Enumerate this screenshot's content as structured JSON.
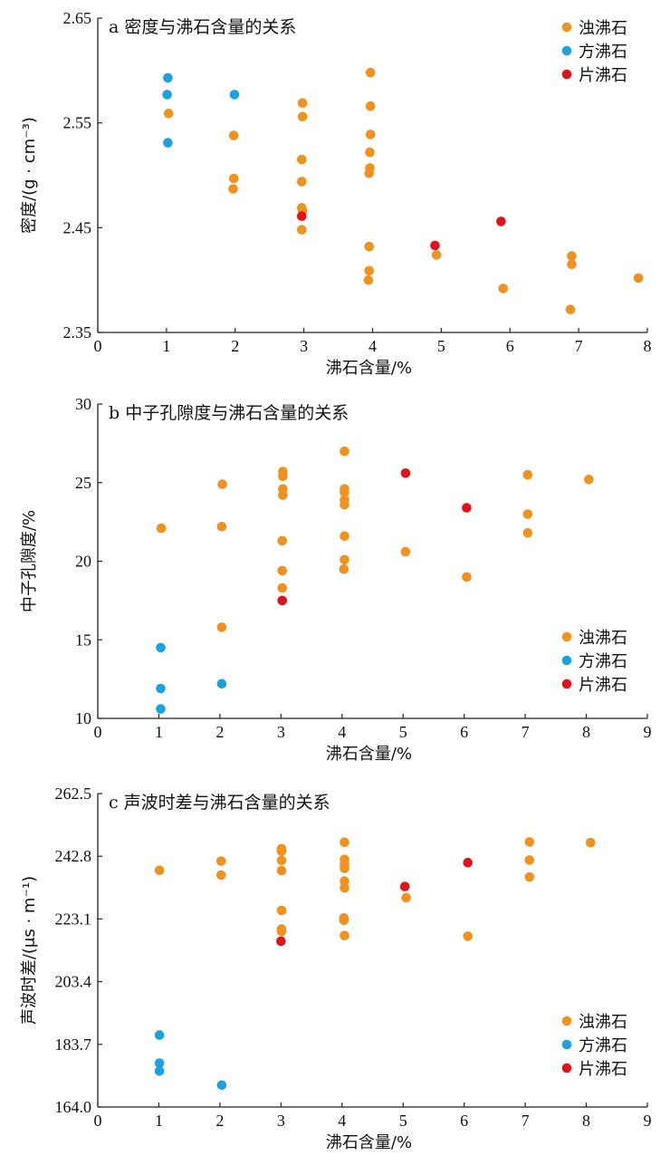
{
  "colors": {
    "浊沸石": "#F0921E",
    "方沸石": "#1BA3E0",
    "片沸石": "#E2121C"
  },
  "chart_data": [
    {
      "type": "scatter",
      "title": "a 密度与沸石含量的关系",
      "xlabel": "沸石含量/%",
      "ylabel": "密度/(g · cm⁻³)",
      "xlim": [
        0,
        8
      ],
      "ylim": [
        2.35,
        2.65
      ],
      "xticks": [
        "0",
        "1",
        "2",
        "3",
        "4",
        "5",
        "6",
        "7",
        "8"
      ],
      "yticks": [
        "2.35",
        "2.45",
        "2.55",
        "2.65"
      ],
      "legend_position": "top-right",
      "series": [
        {
          "name": "浊沸石",
          "points": [
            [
              1.03,
              2.559
            ],
            [
              1.98,
              2.538
            ],
            [
              1.98,
              2.497
            ],
            [
              1.97,
              2.487
            ],
            [
              2.98,
              2.569
            ],
            [
              2.98,
              2.556
            ],
            [
              2.97,
              2.515
            ],
            [
              2.97,
              2.494
            ],
            [
              2.97,
              2.469
            ],
            [
              2.98,
              2.466
            ],
            [
              2.97,
              2.448
            ],
            [
              3.97,
              2.598
            ],
            [
              3.97,
              2.566
            ],
            [
              3.97,
              2.539
            ],
            [
              3.96,
              2.522
            ],
            [
              3.96,
              2.507
            ],
            [
              3.95,
              2.502
            ],
            [
              3.95,
              2.432
            ],
            [
              3.95,
              2.409
            ],
            [
              3.94,
              2.4
            ],
            [
              4.93,
              2.424
            ],
            [
              5.9,
              2.392
            ],
            [
              6.9,
              2.423
            ],
            [
              6.9,
              2.415
            ],
            [
              6.88,
              2.372
            ],
            [
              7.87,
              2.402
            ]
          ]
        },
        {
          "name": "方沸石",
          "points": [
            [
              1.02,
              2.593
            ],
            [
              1.01,
              2.577
            ],
            [
              1.02,
              2.531
            ],
            [
              1.99,
              2.577
            ]
          ]
        },
        {
          "name": "片沸石",
          "points": [
            [
              2.97,
              2.461
            ],
            [
              4.91,
              2.433
            ],
            [
              5.87,
              2.456
            ]
          ]
        }
      ]
    },
    {
      "type": "scatter",
      "title": "b 中子孔隙度与沸石含量的关系",
      "xlabel": "沸石含量/%",
      "ylabel": "中子孔隙度/%",
      "xlim": [
        0,
        9
      ],
      "ylim": [
        10,
        30
      ],
      "xticks": [
        "0",
        "1",
        "2",
        "3",
        "4",
        "5",
        "6",
        "7",
        "8",
        "9"
      ],
      "yticks": [
        "10",
        "15",
        "20",
        "25",
        "30"
      ],
      "legend_position": "bottom-right",
      "series": [
        {
          "name": "浊沸石",
          "points": [
            [
              1.04,
              22.1
            ],
            [
              2.04,
              24.9
            ],
            [
              2.03,
              22.2
            ],
            [
              2.03,
              15.8
            ],
            [
              3.03,
              25.7
            ],
            [
              3.03,
              25.4
            ],
            [
              3.03,
              24.6
            ],
            [
              3.03,
              24.2
            ],
            [
              3.02,
              21.3
            ],
            [
              3.02,
              19.4
            ],
            [
              3.02,
              18.3
            ],
            [
              4.04,
              27.0
            ],
            [
              4.04,
              24.6
            ],
            [
              4.04,
              24.4
            ],
            [
              4.04,
              23.9
            ],
            [
              4.04,
              23.6
            ],
            [
              4.04,
              21.6
            ],
            [
              4.04,
              20.1
            ],
            [
              4.03,
              19.5
            ],
            [
              5.04,
              20.6
            ],
            [
              6.04,
              19.0
            ],
            [
              7.04,
              25.5
            ],
            [
              7.04,
              23.0
            ],
            [
              7.04,
              21.8
            ],
            [
              8.04,
              25.2
            ]
          ]
        },
        {
          "name": "方沸石",
          "points": [
            [
              1.03,
              14.5
            ],
            [
              1.03,
              11.9
            ],
            [
              1.03,
              10.6
            ],
            [
              2.03,
              12.2
            ]
          ]
        },
        {
          "name": "片沸石",
          "points": [
            [
              3.02,
              17.5
            ],
            [
              5.04,
              25.6
            ],
            [
              6.04,
              23.4
            ]
          ]
        }
      ]
    },
    {
      "type": "scatter",
      "title": "c 声波时差与沸石含量的关系",
      "xlabel": "沸石含量/%",
      "ylabel": "声波时差/(μs · m⁻¹)",
      "xlim": [
        0,
        9
      ],
      "ylim": [
        164.0,
        262.5
      ],
      "xticks": [
        "0",
        "1",
        "2",
        "3",
        "4",
        "5",
        "6",
        "7",
        "8",
        "9"
      ],
      "yticks": [
        "164.0",
        "183.7",
        "203.4",
        "223.1",
        "242.8",
        "262.5"
      ],
      "legend_position": "bottom-right",
      "series": [
        {
          "name": "浊沸石",
          "points": [
            [
              1.01,
              238.4
            ],
            [
              2.02,
              241.3
            ],
            [
              2.02,
              236.9
            ],
            [
              3.01,
              245.2
            ],
            [
              3.01,
              244.4
            ],
            [
              3.01,
              241.5
            ],
            [
              3.01,
              238.3
            ],
            [
              3.01,
              225.8
            ],
            [
              3.01,
              219.9
            ],
            [
              3.01,
              219.2
            ],
            [
              4.04,
              247.2
            ],
            [
              4.04,
              241.8
            ],
            [
              4.04,
              240.3
            ],
            [
              4.04,
              239.0
            ],
            [
              4.04,
              235.0
            ],
            [
              4.04,
              232.9
            ],
            [
              4.03,
              223.4
            ],
            [
              4.03,
              222.7
            ],
            [
              4.04,
              217.9
            ],
            [
              5.05,
              229.8
            ],
            [
              6.06,
              217.7
            ],
            [
              7.07,
              247.3
            ],
            [
              7.07,
              241.6
            ],
            [
              7.07,
              236.3
            ],
            [
              8.07,
              247.1
            ]
          ]
        },
        {
          "name": "方沸石",
          "points": [
            [
              1.01,
              186.6
            ],
            [
              1.01,
              177.8
            ],
            [
              1.01,
              175.3
            ],
            [
              2.03,
              170.9
            ]
          ]
        },
        {
          "name": "片沸石",
          "points": [
            [
              3.0,
              216.1
            ],
            [
              5.03,
              233.3
            ],
            [
              6.06,
              240.8
            ]
          ]
        }
      ]
    }
  ]
}
